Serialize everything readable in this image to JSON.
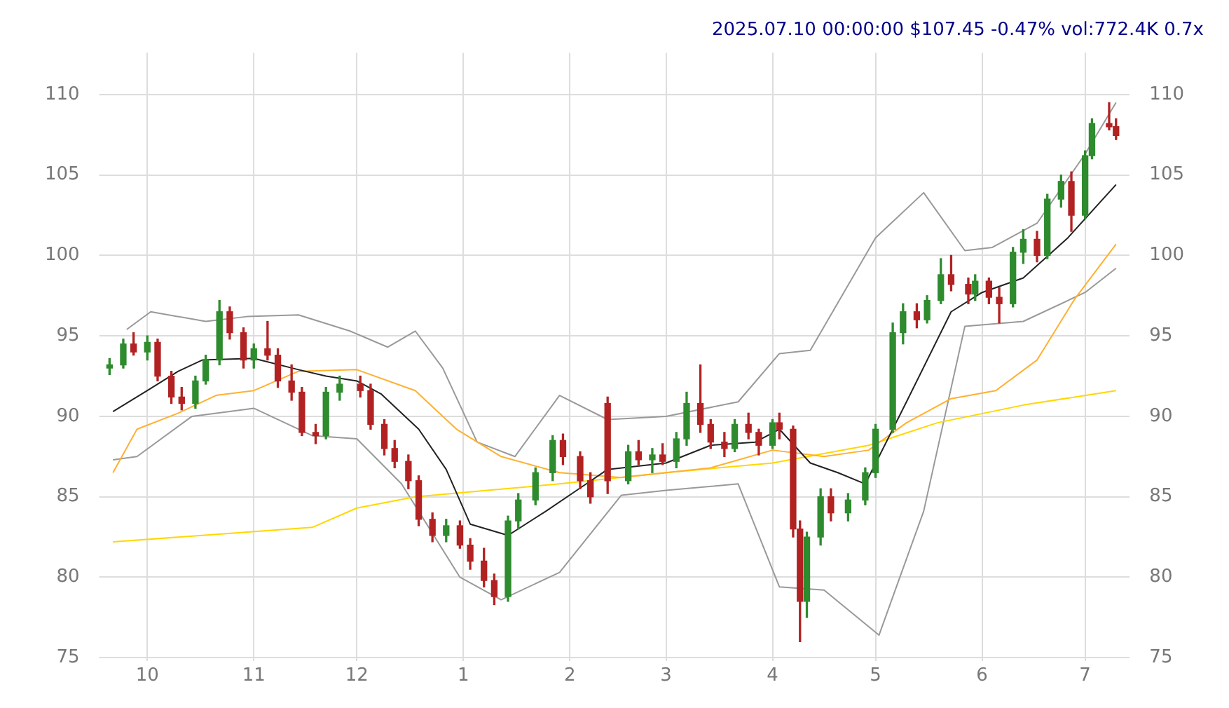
{
  "chart_data": {
    "type": "candlestick",
    "title": "2025.07.10 00:00:00 $107.45 -0.47% vol:772.4K 0.7x",
    "colors": [
      "#2e8b2e",
      "#2e8b2e",
      "#b22222",
      "#2e8b2e",
      "#b22222",
      "#b22222",
      "#b22222",
      "#2e8b2e",
      "#2e8b2e",
      "#2e8b2e",
      "#b22222",
      "#b22222",
      "#2e8b2e",
      "#b22222",
      "#b22222",
      "#b22222",
      "#b22222",
      "#b22222",
      "#2e8b2e",
      "#2e8b2e",
      "#b22222",
      "#b22222",
      "#b22222",
      "#b22222",
      "#b22222",
      "#b22222",
      "#b22222",
      "#2e8b2e",
      "#b22222",
      "#b22222",
      "#b22222",
      "#b22222",
      "#2e8b2e",
      "#2e8b2e",
      "#2e8b2e",
      "#2e8b2e",
      "#b22222",
      "#b22222",
      "#b22222",
      "#b22222",
      "#2e8b2e",
      "#b22222",
      "#2e8b2e",
      "#b22222",
      "#2e8b2e",
      "#2e8b2e",
      "#b22222",
      "#b22222",
      "#b22222",
      "#2e8b2e",
      "#b22222",
      "#b22222",
      "#2e8b2e",
      "#b22222",
      "#b22222",
      "#b22222",
      "#2e8b2e",
      "#2e8b2e",
      "#b22222",
      "#2e8b2e",
      "#2e8b2e",
      "#2e8b2e",
      "#2e8b2e",
      "#2e8b2e",
      "#b22222",
      "#2e8b2e",
      "#2e8b2e",
      "#b22222",
      "#b22222",
      "#2e8b2e",
      "#b22222",
      "#b22222",
      "#2e8b2e",
      "#2e8b2e",
      "#b22222",
      "#2e8b2e",
      "#2e8b2e",
      "#b22222",
      "#2e8b2e",
      "#2e8b2e",
      "#b22222",
      "#b22222"
    ],
    "x": [
      "2024-09-20",
      "2024-09-24",
      "2024-09-27",
      "2024-10-01",
      "2024-10-04",
      "2024-10-08",
      "2024-10-11",
      "2024-10-15",
      "2024-10-18",
      "2024-10-22",
      "2024-10-25",
      "2024-10-29",
      "2024-11-01",
      "2024-11-05",
      "2024-11-08",
      "2024-11-12",
      "2024-11-15",
      "2024-11-19",
      "2024-11-22",
      "2024-11-26",
      "2024-12-02",
      "2024-12-05",
      "2024-12-09",
      "2024-12-12",
      "2024-12-16",
      "2024-12-19",
      "2024-12-23",
      "2024-12-27",
      "2024-12-31",
      "2025-01-03",
      "2025-01-07",
      "2025-01-10",
      "2025-01-14",
      "2025-01-17",
      "2025-01-22",
      "2025-01-27",
      "2025-01-30",
      "2025-02-04",
      "2025-02-07",
      "2025-02-12",
      "2025-02-18",
      "2025-02-21",
      "2025-02-25",
      "2025-02-28",
      "2025-03-04",
      "2025-03-07",
      "2025-03-11",
      "2025-03-14",
      "2025-03-18",
      "2025-03-21",
      "2025-03-25",
      "2025-03-28",
      "2025-04-01",
      "2025-04-03",
      "2025-04-07",
      "2025-04-09",
      "2025-04-11",
      "2025-04-15",
      "2025-04-18",
      "2025-04-23",
      "2025-04-28",
      "2025-05-01",
      "2025-05-06",
      "2025-05-09",
      "2025-05-13",
      "2025-05-16",
      "2025-05-20",
      "2025-05-23",
      "2025-05-28",
      "2025-05-30",
      "2025-06-03",
      "2025-06-06",
      "2025-06-10",
      "2025-06-13",
      "2025-06-17",
      "2025-06-20",
      "2025-06-24",
      "2025-06-27",
      "2025-07-01",
      "2025-07-03",
      "2025-07-08",
      "2025-07-10"
    ],
    "ohlc": [
      [
        93.0,
        93.6,
        92.6,
        93.2
      ],
      [
        93.2,
        94.8,
        93.0,
        94.5
      ],
      [
        94.5,
        95.2,
        93.8,
        94.0
      ],
      [
        94.0,
        95.0,
        93.5,
        94.6
      ],
      [
        94.6,
        94.8,
        92.2,
        92.5
      ],
      [
        92.5,
        92.8,
        90.8,
        91.2
      ],
      [
        91.2,
        91.8,
        90.4,
        90.8
      ],
      [
        90.8,
        92.5,
        90.5,
        92.2
      ],
      [
        92.2,
        93.8,
        92.0,
        93.5
      ],
      [
        93.5,
        97.2,
        93.2,
        96.5
      ],
      [
        96.5,
        96.8,
        94.8,
        95.2
      ],
      [
        95.2,
        95.5,
        93.0,
        93.5
      ],
      [
        93.5,
        94.5,
        93.0,
        94.2
      ],
      [
        94.2,
        95.9,
        93.5,
        93.8
      ],
      [
        93.8,
        94.2,
        91.8,
        92.2
      ],
      [
        92.2,
        93.2,
        91.0,
        91.5
      ],
      [
        91.5,
        91.8,
        88.8,
        89.0
      ],
      [
        89.0,
        89.5,
        88.3,
        88.8
      ],
      [
        88.8,
        91.8,
        88.6,
        91.5
      ],
      [
        91.5,
        92.5,
        91.0,
        92.0
      ],
      [
        92.0,
        92.5,
        91.2,
        91.6
      ],
      [
        91.6,
        92.0,
        89.2,
        89.5
      ],
      [
        89.5,
        89.8,
        87.6,
        88.0
      ],
      [
        88.0,
        88.5,
        86.8,
        87.2
      ],
      [
        87.2,
        87.6,
        85.5,
        86.0
      ],
      [
        86.0,
        86.3,
        83.2,
        83.6
      ],
      [
        83.6,
        84.0,
        82.2,
        82.6
      ],
      [
        82.6,
        83.6,
        82.2,
        83.2
      ],
      [
        83.2,
        83.5,
        81.8,
        82.0
      ],
      [
        82.0,
        82.4,
        80.5,
        81.0
      ],
      [
        81.0,
        81.8,
        79.4,
        79.8
      ],
      [
        79.8,
        80.2,
        78.3,
        78.8
      ],
      [
        78.8,
        83.8,
        78.5,
        83.5
      ],
      [
        83.5,
        85.2,
        83.0,
        84.8
      ],
      [
        84.8,
        86.8,
        84.5,
        86.5
      ],
      [
        86.5,
        88.8,
        86.0,
        88.5
      ],
      [
        88.5,
        88.9,
        87.0,
        87.5
      ],
      [
        87.5,
        87.8,
        85.5,
        86.0
      ],
      [
        86.0,
        86.5,
        84.6,
        85.0
      ],
      [
        90.8,
        91.2,
        85.2,
        86.0
      ],
      [
        86.0,
        88.2,
        85.8,
        87.8
      ],
      [
        87.8,
        88.5,
        87.0,
        87.3
      ],
      [
        87.3,
        88.0,
        86.5,
        87.6
      ],
      [
        87.6,
        88.3,
        87.0,
        87.2
      ],
      [
        87.2,
        89.0,
        86.8,
        88.6
      ],
      [
        88.6,
        91.5,
        88.2,
        90.8
      ],
      [
        90.8,
        93.2,
        89.0,
        89.5
      ],
      [
        89.5,
        89.8,
        88.0,
        88.4
      ],
      [
        88.4,
        89.0,
        87.5,
        88.0
      ],
      [
        88.0,
        89.8,
        87.8,
        89.5
      ],
      [
        89.5,
        90.2,
        88.6,
        89.0
      ],
      [
        89.0,
        89.2,
        87.6,
        88.2
      ],
      [
        88.2,
        89.8,
        88.0,
        89.6
      ],
      [
        89.6,
        90.2,
        88.6,
        89.2
      ],
      [
        89.2,
        89.4,
        82.5,
        83.0
      ],
      [
        83.0,
        83.5,
        76.0,
        78.5
      ],
      [
        78.5,
        82.8,
        77.5,
        82.5
      ],
      [
        82.5,
        85.5,
        82.0,
        85.0
      ],
      [
        85.0,
        85.5,
        83.5,
        84.0
      ],
      [
        84.0,
        85.2,
        83.5,
        84.8
      ],
      [
        84.8,
        86.8,
        84.5,
        86.5
      ],
      [
        86.5,
        89.5,
        86.2,
        89.2
      ],
      [
        89.2,
        95.8,
        89.0,
        95.2
      ],
      [
        95.2,
        97.0,
        94.5,
        96.5
      ],
      [
        96.5,
        97.0,
        95.5,
        96.0
      ],
      [
        96.0,
        97.5,
        95.8,
        97.2
      ],
      [
        97.2,
        99.8,
        97.0,
        98.8
      ],
      [
        98.8,
        100.0,
        97.8,
        98.2
      ],
      [
        98.2,
        98.6,
        97.0,
        97.6
      ],
      [
        97.6,
        98.8,
        97.2,
        98.4
      ],
      [
        98.4,
        98.6,
        97.0,
        97.4
      ],
      [
        97.4,
        98.0,
        95.8,
        97.0
      ],
      [
        97.0,
        100.5,
        96.8,
        100.2
      ],
      [
        100.2,
        101.6,
        99.5,
        101.0
      ],
      [
        101.0,
        101.5,
        99.6,
        100.0
      ],
      [
        100.0,
        103.8,
        99.8,
        103.5
      ],
      [
        103.5,
        105.0,
        103.0,
        104.6
      ],
      [
        104.6,
        105.2,
        101.5,
        102.5
      ],
      [
        102.5,
        106.5,
        102.3,
        106.2
      ],
      [
        106.2,
        108.5,
        106.0,
        108.2
      ],
      [
        108.2,
        109.5,
        107.8,
        108.0
      ],
      [
        108.0,
        108.5,
        107.2,
        107.45
      ]
    ],
    "series": [
      {
        "type": "line",
        "color": "#222222",
        "x": [
          "2024-09-21",
          "2024-10-01",
          "2024-10-10",
          "2024-10-17",
          "2024-11-01",
          "2024-11-14",
          "2024-11-22",
          "2024-12-01",
          "2024-12-08",
          "2024-12-19",
          "2024-12-27",
          "2025-01-03",
          "2025-01-14",
          "2025-01-25",
          "2025-02-03",
          "2025-02-12",
          "2025-03-01",
          "2025-03-14",
          "2025-03-27",
          "2025-04-03",
          "2025-04-12",
          "2025-04-20",
          "2025-04-28",
          "2025-05-10",
          "2025-05-23",
          "2025-06-01",
          "2025-06-13",
          "2025-06-26",
          "2025-07-10"
        ],
        "values": [
          90.3,
          91.6,
          92.8,
          93.5,
          93.6,
          92.9,
          92.5,
          92.2,
          91.4,
          89.2,
          86.7,
          83.3,
          82.6,
          84.1,
          85.4,
          86.7,
          87.1,
          88.2,
          88.4,
          89.2,
          87.1,
          86.5,
          85.8,
          90.9,
          96.5,
          97.7,
          98.6,
          101.1,
          104.4
        ]
      },
      {
        "type": "line",
        "color": "#ffb030",
        "x": [
          "2024-09-21",
          "2024-09-28",
          "2024-10-10",
          "2024-10-21",
          "2024-11-01",
          "2024-11-14",
          "2024-12-01",
          "2024-12-18",
          "2024-12-30",
          "2025-01-12",
          "2025-01-29",
          "2025-02-16",
          "2025-03-01",
          "2025-03-14",
          "2025-04-01",
          "2025-04-16",
          "2025-04-29",
          "2025-05-10",
          "2025-05-23",
          "2025-06-05",
          "2025-06-17",
          "2025-06-28",
          "2025-07-10"
        ],
        "values": [
          86.5,
          89.2,
          90.2,
          91.3,
          91.6,
          92.8,
          92.9,
          91.6,
          89.2,
          87.5,
          86.5,
          86.2,
          86.5,
          86.8,
          87.9,
          87.5,
          87.9,
          89.6,
          91.1,
          91.6,
          93.5,
          97.3,
          100.7
        ]
      },
      {
        "type": "line",
        "color": "#ffd700",
        "x": [
          "2024-09-21",
          "2024-10-17",
          "2024-11-18",
          "2024-12-01",
          "2024-12-18",
          "2025-01-08",
          "2025-01-29",
          "2025-03-01",
          "2025-04-01",
          "2025-04-29",
          "2025-05-19",
          "2025-06-13",
          "2025-07-10"
        ],
        "values": [
          82.2,
          82.6,
          83.1,
          84.3,
          85.0,
          85.4,
          85.8,
          86.5,
          87.1,
          88.2,
          89.6,
          90.7,
          91.6
        ]
      },
      {
        "type": "line",
        "color": "#999999",
        "x": [
          "2024-09-25",
          "2024-10-02",
          "2024-10-18",
          "2024-10-30",
          "2024-11-14",
          "2024-11-29",
          "2024-12-10",
          "2024-12-18",
          "2024-12-26",
          "2025-01-05",
          "2025-01-16",
          "2025-01-29",
          "2025-02-12",
          "2025-03-01",
          "2025-03-22",
          "2025-04-03",
          "2025-04-12",
          "2025-05-01",
          "2025-05-15",
          "2025-05-27",
          "2025-06-04",
          "2025-06-17",
          "2025-07-01",
          "2025-07-10"
        ],
        "values": [
          95.4,
          96.5,
          95.9,
          96.2,
          96.3,
          95.3,
          94.3,
          95.3,
          93.0,
          88.4,
          87.5,
          91.3,
          89.8,
          90.0,
          90.9,
          93.9,
          94.1,
          101.1,
          103.9,
          100.3,
          100.5,
          102.0,
          106.3,
          109.5
        ]
      },
      {
        "type": "line",
        "color": "#999999",
        "x": [
          "2024-09-21",
          "2024-09-28",
          "2024-10-14",
          "2024-11-01",
          "2024-11-18",
          "2024-12-01",
          "2024-12-14",
          "2024-12-31",
          "2025-01-12",
          "2025-01-29",
          "2025-02-16",
          "2025-03-01",
          "2025-03-22",
          "2025-04-03",
          "2025-04-16",
          "2025-05-02",
          "2025-05-15",
          "2025-05-27",
          "2025-06-13",
          "2025-07-01",
          "2025-07-10"
        ],
        "values": [
          87.3,
          87.5,
          90.0,
          90.5,
          88.8,
          88.6,
          85.8,
          80.0,
          78.6,
          80.3,
          85.1,
          85.4,
          85.8,
          79.4,
          79.2,
          76.4,
          84.1,
          95.6,
          95.9,
          97.7,
          99.2
        ]
      }
    ],
    "xlim": [
      "2024-09-17",
      "2025-07-14"
    ],
    "xticks": [
      {
        "value": "2024-10-01",
        "label": "10"
      },
      {
        "value": "2024-11-01",
        "label": "11"
      },
      {
        "value": "2024-12-01",
        "label": "12"
      },
      {
        "value": "2025-01-01",
        "label": "1"
      },
      {
        "value": "2025-02-01",
        "label": "2"
      },
      {
        "value": "2025-03-01",
        "label": "3"
      },
      {
        "value": "2025-04-01",
        "label": "4"
      },
      {
        "value": "2025-05-01",
        "label": "5"
      },
      {
        "value": "2025-06-01",
        "label": "6"
      },
      {
        "value": "2025-07-01",
        "label": "7"
      }
    ],
    "ylim": [
      74.8,
      112.6
    ],
    "yticks": [
      75,
      80,
      85,
      90,
      95,
      100,
      105,
      110
    ],
    "y2lim": [
      74.8,
      112.6
    ],
    "y2ticks": [
      75,
      80,
      85,
      90,
      95,
      100,
      105,
      110
    ],
    "grid": true,
    "legend": false
  }
}
